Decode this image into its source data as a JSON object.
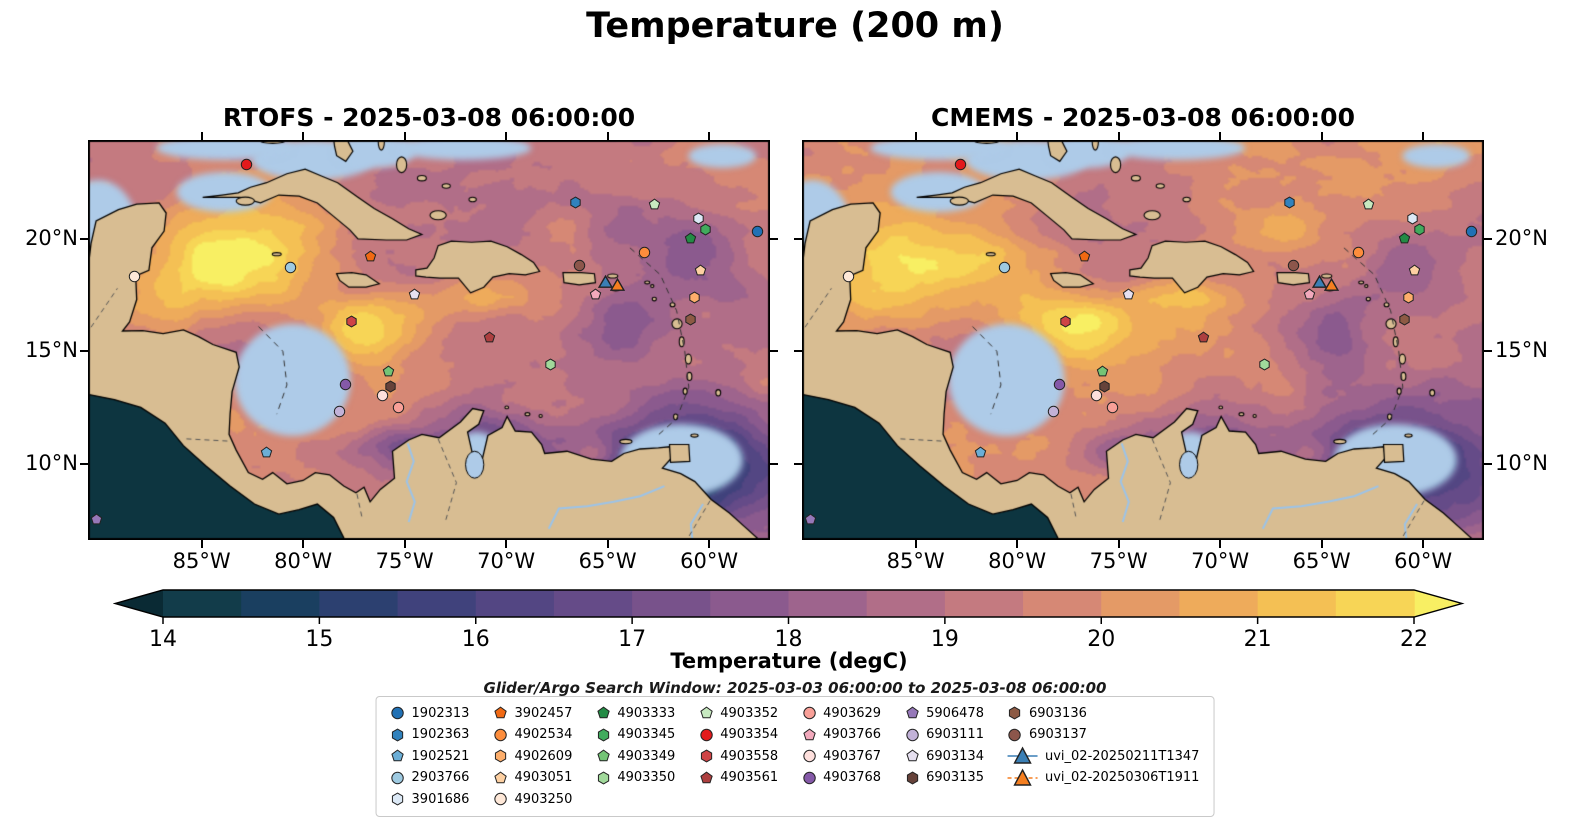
{
  "title": "Temperature (200 m)",
  "panels": [
    {
      "title": "RTOFS - 2025-03-08 06:00:00"
    },
    {
      "title": "CMEMS - 2025-03-08 06:00:00"
    }
  ],
  "axes": {
    "lon_ticks": [
      {
        "label": "85°W",
        "lon": -85
      },
      {
        "label": "80°W",
        "lon": -80
      },
      {
        "label": "75°W",
        "lon": -75
      },
      {
        "label": "70°W",
        "lon": -70
      },
      {
        "label": "65°W",
        "lon": -65
      },
      {
        "label": "60°W",
        "lon": -60
      }
    ],
    "lat_ticks": [
      {
        "label": "20°N",
        "lat": 20
      },
      {
        "label": "15°N",
        "lat": 15
      },
      {
        "label": "10°N",
        "lat": 10
      }
    ]
  },
  "colorbar": {
    "label": "Temperature (degC)",
    "ticks": [
      14,
      15,
      16,
      17,
      18,
      19,
      20,
      21,
      22
    ],
    "range": [
      14,
      22
    ],
    "extend": "both",
    "under": "#0a2a34",
    "over": "#f8ef63",
    "band_colors": [
      "#123c4a",
      "#1a3f60",
      "#2c4070",
      "#40427c",
      "#534683",
      "#654b88",
      "#78528b",
      "#8b5a8e",
      "#9e648d",
      "#b16e88",
      "#c47a80",
      "#d68875",
      "#e49a66",
      "#eeab5b",
      "#f4c054",
      "#f7d556"
    ]
  },
  "search_window_text": "Glider/Argo Search Window: 2025-03-03 06:00:00 to 2025-03-08 06:00:00",
  "land_color": "#d8bd92",
  "shelf_color": "#aecbe8",
  "chart_data": {
    "type": "heatmap",
    "title": "Temperature (200 m)",
    "variable": "Temperature (degC)",
    "depth_m": 200,
    "panels": [
      {
        "model": "RTOFS",
        "time": "2025-03-08 06:00:00"
      },
      {
        "model": "CMEMS",
        "time": "2025-03-08 06:00:00"
      }
    ],
    "extent": {
      "lon": [
        -90.6,
        -57.0
      ],
      "lat": [
        6.6,
        24.4
      ]
    },
    "colorbar": {
      "ticks": [
        14,
        15,
        16,
        17,
        18,
        19,
        20,
        21,
        22
      ],
      "range": [
        14,
        22
      ],
      "extend": "both"
    },
    "search_window": {
      "start": "2025-03-03 06:00:00",
      "end": "2025-03-08 06:00:00"
    },
    "legend_layout": [
      5,
      5,
      4,
      4,
      4,
      4,
      4
    ],
    "platforms": [
      {
        "id": "1902313",
        "shape": "circle",
        "color": "#2171b5",
        "lon": -57.6,
        "lat": 20.4
      },
      {
        "id": "1902363",
        "shape": "hexagon",
        "color": "#3182bd",
        "lon": -66.6,
        "lat": 21.7
      },
      {
        "id": "1902521",
        "shape": "pentagon",
        "color": "#6baed6",
        "lon": -81.8,
        "lat": 10.6
      },
      {
        "id": "2903766",
        "shape": "circle",
        "color": "#9ecae1",
        "lon": -80.6,
        "lat": 18.8
      },
      {
        "id": "3901686",
        "shape": "hexagon",
        "color": "#dce9f6",
        "lon": -60.5,
        "lat": 21.0
      },
      {
        "id": "3902457",
        "shape": "pentagon",
        "color": "#f16913",
        "lon": -76.7,
        "lat": 19.3
      },
      {
        "id": "4902534",
        "shape": "circle",
        "color": "#fd8d3c",
        "lon": -63.2,
        "lat": 19.5
      },
      {
        "id": "4902609",
        "shape": "hexagon",
        "color": "#fdae6b",
        "lon": -60.7,
        "lat": 17.5
      },
      {
        "id": "4903051",
        "shape": "pentagon",
        "color": "#fdd0a2",
        "lon": -60.4,
        "lat": 18.7
      },
      {
        "id": "4903250",
        "shape": "circle",
        "color": "#fee8d8",
        "lon": -88.3,
        "lat": 18.4
      },
      {
        "id": "4903333",
        "shape": "pentagon",
        "color": "#238b45",
        "lon": -60.9,
        "lat": 20.1
      },
      {
        "id": "4903345",
        "shape": "hexagon",
        "color": "#41ab5d",
        "lon": -60.2,
        "lat": 20.5
      },
      {
        "id": "4903349",
        "shape": "pentagon",
        "color": "#74c476",
        "lon": -75.8,
        "lat": 14.2
      },
      {
        "id": "4903350",
        "shape": "hexagon",
        "color": "#a1d99b",
        "lon": -67.8,
        "lat": 14.5
      },
      {
        "id": "4903352",
        "shape": "pentagon",
        "color": "#c7e9c0",
        "lon": -62.7,
        "lat": 21.6
      },
      {
        "id": "4903354",
        "shape": "circle",
        "color": "#e31a1c",
        "lon": -82.8,
        "lat": 23.4
      },
      {
        "id": "4903558",
        "shape": "hexagon",
        "color": "#cf4446",
        "lon": -77.6,
        "lat": 16.4
      },
      {
        "id": "4903561",
        "shape": "pentagon",
        "color": "#ad3f3f",
        "lon": -70.8,
        "lat": 15.7
      },
      {
        "id": "4903629",
        "shape": "circle",
        "color": "#f9a098",
        "lon": -75.3,
        "lat": 12.6
      },
      {
        "id": "4903766",
        "shape": "pentagon",
        "color": "#f2a9bc",
        "lon": -65.6,
        "lat": 17.6
      },
      {
        "id": "4903767",
        "shape": "circle",
        "color": "#fddfdc",
        "lon": -76.1,
        "lat": 13.1
      },
      {
        "id": "4903768",
        "shape": "circle",
        "color": "#8559a8",
        "lon": -77.9,
        "lat": 13.6
      },
      {
        "id": "5906478",
        "shape": "pentagon",
        "color": "#9678b9",
        "lon": -90.2,
        "lat": 7.6
      },
      {
        "id": "6903111",
        "shape": "circle",
        "color": "#c2b2d8",
        "lon": -78.2,
        "lat": 12.4
      },
      {
        "id": "6903134",
        "shape": "pentagon",
        "color": "#e6e0f0",
        "lon": -74.5,
        "lat": 17.6
      },
      {
        "id": "6903135",
        "shape": "hexagon",
        "color": "#66423a",
        "lon": -75.7,
        "lat": 13.5
      },
      {
        "id": "6903136",
        "shape": "hexagon",
        "color": "#8d5a44",
        "lon": -60.9,
        "lat": 16.5
      },
      {
        "id": "6903137",
        "shape": "circle",
        "color": "#8c564b",
        "lon": -66.4,
        "lat": 18.9
      },
      {
        "id": "uvi_02-20250211T1347",
        "shape": "triangle",
        "color": "#3a7fb5",
        "line": "solid",
        "lon": -65.1,
        "lat": 18.0
      },
      {
        "id": "uvi_02-20250306T1911",
        "shape": "triangle",
        "color": "#f57f20",
        "line": "dashed",
        "lon": -64.5,
        "lat": 17.9
      }
    ]
  }
}
